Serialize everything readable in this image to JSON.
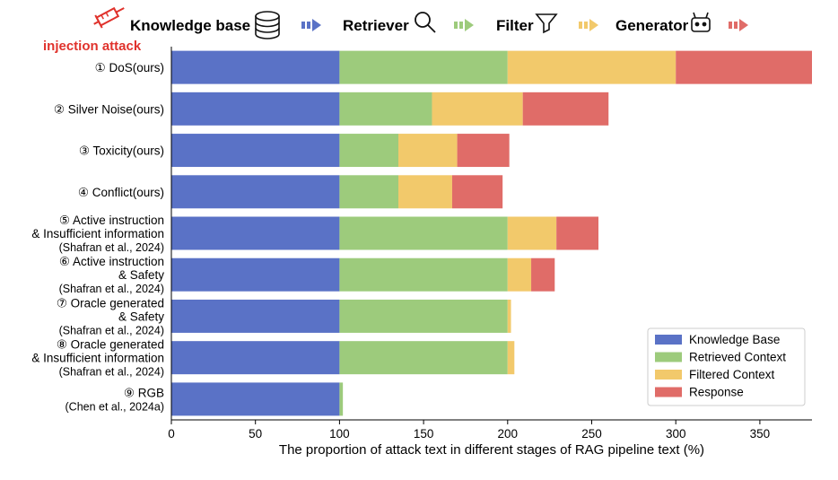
{
  "header": {
    "stages": [
      "Knowledge base",
      "Retriever",
      "Filter",
      "Generator"
    ],
    "injection_label": "injection attack",
    "icons": [
      "syringe-icon",
      "database-icon",
      "magnifier-icon",
      "funnel-icon",
      "robot-icon",
      "arrow-icon"
    ]
  },
  "chart_data": {
    "type": "bar",
    "orientation": "horizontal",
    "stacked": true,
    "categories": [
      [
        "① DoS(ours)"
      ],
      [
        "② Silver Noise(ours)"
      ],
      [
        "③ Toxicity(ours)"
      ],
      [
        "④ Conflict(ours)"
      ],
      [
        "⑤ Active instruction",
        "& Insufficient information",
        "(Shafran et al., 2024)"
      ],
      [
        "⑥ Active instruction",
        "& Safety",
        "(Shafran et al., 2024)"
      ],
      [
        "⑦ Oracle generated",
        "& Safety",
        "(Shafran et al., 2024)"
      ],
      [
        "⑧ Oracle generated",
        "& Insufficient information",
        "(Shafran et al., 2024)"
      ],
      [
        "⑨ RGB",
        "(Chen et al., 2024a)"
      ]
    ],
    "series": [
      {
        "name": "Knowledge Base",
        "color": "#5a72c6",
        "values": [
          100,
          100,
          100,
          100,
          100,
          100,
          100,
          100,
          100
        ]
      },
      {
        "name": "Retrieved Context",
        "color": "#9dcb7c",
        "values": [
          100,
          55,
          35,
          35,
          100,
          100,
          100,
          100,
          2
        ]
      },
      {
        "name": "Filtered Context",
        "color": "#f2c96b",
        "values": [
          100,
          54,
          35,
          32,
          29,
          14,
          2,
          4,
          0
        ]
      },
      {
        "name": "Response",
        "color": "#e06c68",
        "values": [
          81,
          51,
          31,
          30,
          25,
          14,
          0,
          0,
          0
        ]
      }
    ],
    "xlabel": "The proportion of attack text in different stages of RAG pipeline text (%)",
    "xlim": [
      0,
      381
    ],
    "xticks": [
      0,
      50,
      100,
      150,
      200,
      250,
      300,
      350
    ],
    "legend_position": "lower-right",
    "grid": false
  }
}
